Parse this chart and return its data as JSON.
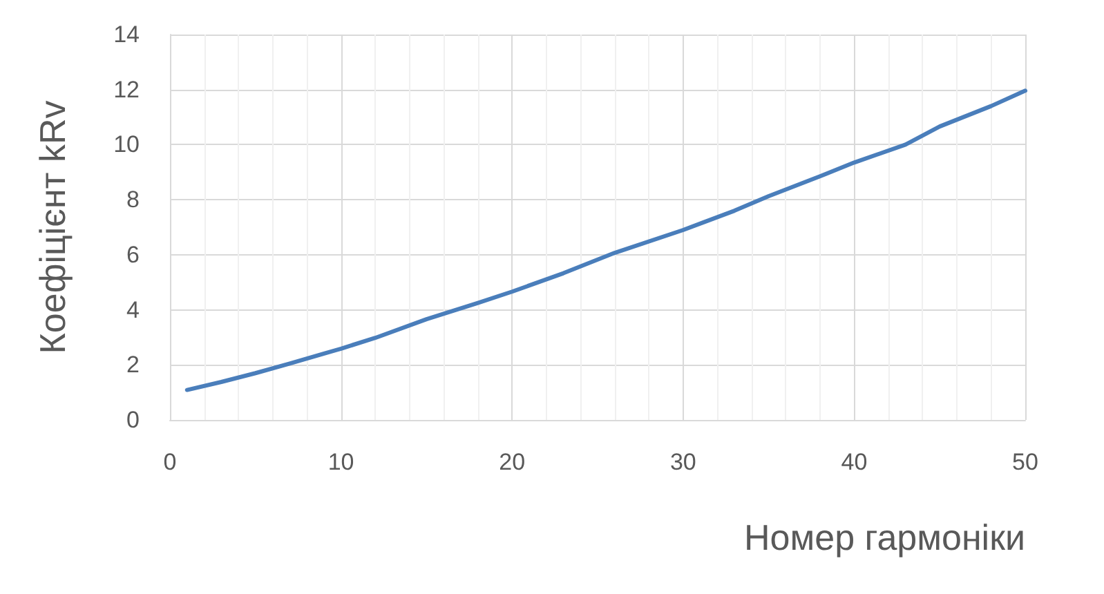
{
  "chart_data": {
    "type": "line",
    "xlabel": "Номер гармоніки",
    "ylabel": "Коефіцієнт kRv",
    "x": [
      1,
      3,
      5,
      7,
      10,
      12,
      15,
      18,
      20,
      23,
      26,
      30,
      33,
      35,
      38,
      40,
      43,
      45,
      48,
      50
    ],
    "series": [
      {
        "color": "#4a7ebb",
        "values": [
          1.09,
          1.38,
          1.7,
          2.05,
          2.59,
          2.98,
          3.66,
          4.25,
          4.66,
          5.33,
          6.07,
          6.9,
          7.6,
          8.13,
          8.85,
          9.35,
          10.0,
          10.66,
          11.4,
          11.96
        ]
      }
    ],
    "xlim": [
      0,
      50
    ],
    "xticks": [
      0,
      10,
      20,
      30,
      40,
      50
    ],
    "ylim": [
      0,
      14
    ],
    "yticks": [
      0,
      2,
      4,
      6,
      8,
      10,
      12,
      14
    ],
    "grid": true,
    "marker": "none",
    "line_style": "solid"
  }
}
